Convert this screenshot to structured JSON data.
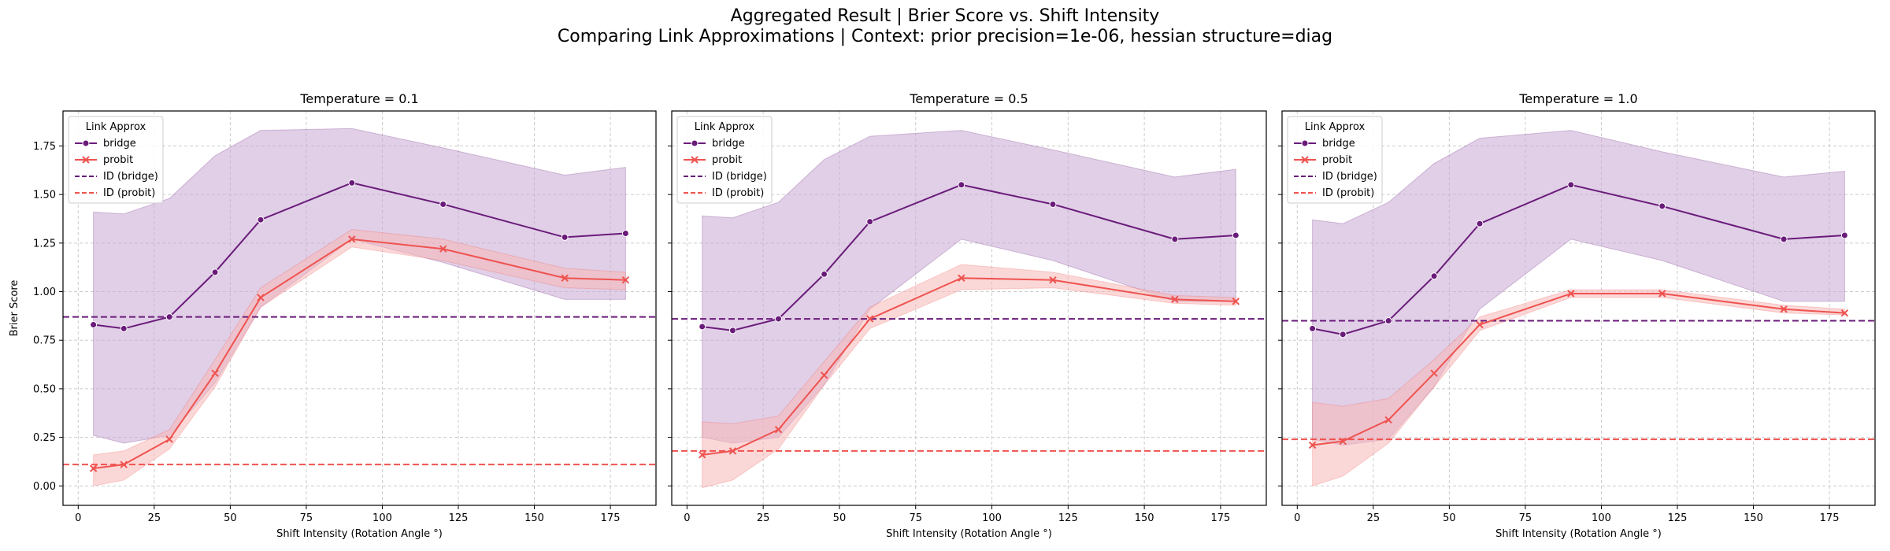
{
  "suptitle": {
    "line1": "Aggregated Result | Brier Score vs. Shift Intensity",
    "line2": "Comparing Link Approximations | Context: prior precision=1e-06, hessian structure=diag"
  },
  "colors": {
    "bridge": "#6a1b7a",
    "bridge_band": "#c7a8d3",
    "probit": "#ef5350",
    "probit_band": "#f7b8b8",
    "grid": "#cccccc"
  },
  "chart_data": [
    {
      "type": "line",
      "title": "Temperature = 0.1",
      "xlabel": "Shift Intensity (Rotation Angle °)",
      "ylabel": "Brier Score",
      "xlim": [
        -5,
        190
      ],
      "ylim": [
        -0.1,
        1.93
      ],
      "xticks": [
        0,
        25,
        50,
        75,
        100,
        125,
        150,
        175
      ],
      "yticks": [
        "0.00",
        "0.25",
        "0.50",
        "0.75",
        "1.00",
        "1.25",
        "1.50",
        "1.75"
      ],
      "grid": true,
      "legend": {
        "title": "Link Approx",
        "position": "upper-left",
        "entries": [
          "bridge",
          "probit",
          "ID (bridge)",
          "ID (probit)"
        ]
      },
      "x": [
        5,
        15,
        30,
        45,
        60,
        90,
        120,
        160,
        180
      ],
      "series": [
        {
          "name": "bridge",
          "values": [
            0.83,
            0.81,
            0.87,
            1.1,
            1.37,
            1.56,
            1.45,
            1.28,
            1.3
          ],
          "lower": [
            0.26,
            0.22,
            0.26,
            0.53,
            0.92,
            1.27,
            1.15,
            0.96,
            0.96
          ],
          "upper": [
            1.41,
            1.4,
            1.48,
            1.7,
            1.83,
            1.84,
            1.74,
            1.6,
            1.64
          ]
        },
        {
          "name": "probit",
          "values": [
            0.09,
            0.11,
            0.24,
            0.58,
            0.97,
            1.27,
            1.22,
            1.07,
            1.06
          ],
          "lower": [
            0.0,
            0.03,
            0.19,
            0.51,
            0.92,
            1.23,
            1.16,
            1.02,
            1.01
          ],
          "upper": [
            0.16,
            0.18,
            0.29,
            0.65,
            1.02,
            1.32,
            1.27,
            1.12,
            1.1
          ]
        }
      ],
      "reference_lines": [
        {
          "name": "ID (bridge)",
          "y": 0.87
        },
        {
          "name": "ID (probit)",
          "y": 0.11
        }
      ]
    },
    {
      "type": "line",
      "title": "Temperature = 0.5",
      "xlabel": "Shift Intensity (Rotation Angle °)",
      "ylabel": "",
      "xlim": [
        -5,
        190
      ],
      "ylim": [
        -0.1,
        1.93
      ],
      "xticks": [
        0,
        25,
        50,
        75,
        100,
        125,
        150,
        175
      ],
      "yticks": [],
      "grid": true,
      "legend": {
        "title": "Link Approx",
        "position": "upper-left",
        "entries": [
          "bridge",
          "probit",
          "ID (bridge)",
          "ID (probit)"
        ]
      },
      "x": [
        5,
        15,
        30,
        45,
        60,
        90,
        120,
        160,
        180
      ],
      "series": [
        {
          "name": "bridge",
          "values": [
            0.82,
            0.8,
            0.86,
            1.09,
            1.36,
            1.55,
            1.45,
            1.27,
            1.29
          ],
          "lower": [
            0.25,
            0.22,
            0.25,
            0.52,
            0.91,
            1.27,
            1.16,
            0.95,
            0.95
          ],
          "upper": [
            1.39,
            1.38,
            1.46,
            1.68,
            1.8,
            1.83,
            1.73,
            1.59,
            1.63
          ]
        },
        {
          "name": "probit",
          "values": [
            0.16,
            0.18,
            0.29,
            0.57,
            0.86,
            1.07,
            1.06,
            0.96,
            0.95
          ],
          "lower": [
            -0.01,
            0.03,
            0.19,
            0.52,
            0.81,
            1.01,
            1.02,
            0.94,
            0.93
          ],
          "upper": [
            0.33,
            0.32,
            0.36,
            0.64,
            0.92,
            1.14,
            1.1,
            0.98,
            0.97
          ]
        }
      ],
      "reference_lines": [
        {
          "name": "ID (bridge)",
          "y": 0.86
        },
        {
          "name": "ID (probit)",
          "y": 0.18
        }
      ]
    },
    {
      "type": "line",
      "title": "Temperature = 1.0",
      "xlabel": "Shift Intensity (Rotation Angle °)",
      "ylabel": "",
      "xlim": [
        -5,
        190
      ],
      "ylim": [
        -0.1,
        1.93
      ],
      "xticks": [
        0,
        25,
        50,
        75,
        100,
        125,
        150,
        175
      ],
      "yticks": [],
      "grid": true,
      "legend": {
        "title": "Link Approx",
        "position": "upper-left",
        "entries": [
          "bridge",
          "probit",
          "ID (bridge)",
          "ID (probit)"
        ]
      },
      "x": [
        5,
        15,
        30,
        45,
        60,
        90,
        120,
        160,
        180
      ],
      "series": [
        {
          "name": "bridge",
          "values": [
            0.81,
            0.78,
            0.85,
            1.08,
            1.35,
            1.55,
            1.44,
            1.27,
            1.29
          ],
          "lower": [
            0.24,
            0.21,
            0.24,
            0.51,
            0.91,
            1.27,
            1.16,
            0.95,
            0.95
          ],
          "upper": [
            1.37,
            1.35,
            1.46,
            1.66,
            1.79,
            1.83,
            1.72,
            1.59,
            1.62
          ]
        },
        {
          "name": "probit",
          "values": [
            0.21,
            0.23,
            0.34,
            0.58,
            0.83,
            0.99,
            0.99,
            0.91,
            0.89
          ],
          "lower": [
            0.0,
            0.05,
            0.22,
            0.51,
            0.8,
            0.97,
            0.97,
            0.89,
            0.88
          ],
          "upper": [
            0.43,
            0.41,
            0.45,
            0.65,
            0.87,
            1.01,
            1.01,
            0.93,
            0.91
          ]
        }
      ],
      "reference_lines": [
        {
          "name": "ID (bridge)",
          "y": 0.85
        },
        {
          "name": "ID (probit)",
          "y": 0.24
        }
      ]
    }
  ]
}
